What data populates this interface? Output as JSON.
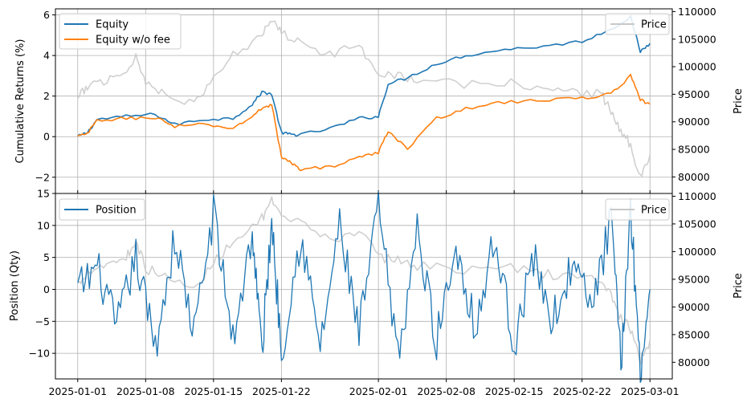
{
  "colors": {
    "equity": "#1f77b4",
    "equity_nofee": "#ff7f0e",
    "price": "#c8c8c8",
    "grid": "#b0b0b0"
  },
  "chart_data": [
    {
      "type": "line",
      "title": "",
      "xlabel": "",
      "ylabel": "Cumulative Returns (%)",
      "ylabel_right": "Price",
      "xlim": [
        "2025-01-01",
        "2025-03-01"
      ],
      "ylim": [
        -2.8,
        6.3
      ],
      "ylim_right": [
        77000,
        110500
      ],
      "grid": true,
      "legend_left": "top-left",
      "legend_right": "top-right",
      "yticks": [
        -2,
        0,
        2,
        4,
        6
      ],
      "yticks_right": [
        80000,
        85000,
        90000,
        95000,
        100000,
        105000,
        110000
      ],
      "series": [
        {
          "name": "Equity",
          "axis": "left",
          "x": [
            "2025-01-01",
            "2025-01-02",
            "2025-01-03",
            "2025-01-06",
            "2025-01-09",
            "2025-01-11",
            "2025-01-14",
            "2025-01-17",
            "2025-01-19",
            "2025-01-20",
            "2025-01-21",
            "2025-01-22",
            "2025-01-23",
            "2025-01-24",
            "2025-01-27",
            "2025-01-30",
            "2025-02-01",
            "2025-02-02",
            "2025-02-04",
            "2025-02-07",
            "2025-02-10",
            "2025-02-14",
            "2025-02-18",
            "2025-02-22",
            "2025-02-25",
            "2025-02-27",
            "2025-02-28",
            "2025-03-01"
          ],
          "y": [
            0.0,
            0.2,
            0.85,
            1.0,
            1.1,
            0.6,
            0.85,
            0.9,
            1.6,
            2.2,
            2.1,
            0.2,
            0.1,
            0.1,
            0.4,
            0.9,
            1.0,
            2.6,
            2.9,
            3.6,
            4.0,
            4.3,
            4.45,
            4.7,
            5.3,
            5.9,
            4.2,
            4.6
          ]
        },
        {
          "name": "Equity w/o fee",
          "axis": "left",
          "x": [
            "2025-01-01",
            "2025-01-02",
            "2025-01-03",
            "2025-01-06",
            "2025-01-09",
            "2025-01-11",
            "2025-01-14",
            "2025-01-17",
            "2025-01-19",
            "2025-01-20",
            "2025-01-21",
            "2025-01-22",
            "2025-01-23",
            "2025-01-24",
            "2025-01-27",
            "2025-01-30",
            "2025-02-01",
            "2025-02-02",
            "2025-02-04",
            "2025-02-07",
            "2025-02-10",
            "2025-02-14",
            "2025-02-18",
            "2025-02-22",
            "2025-02-25",
            "2025-02-27",
            "2025-02-28",
            "2025-03-01"
          ],
          "y": [
            0.0,
            0.15,
            0.8,
            0.9,
            0.95,
            0.5,
            0.6,
            0.4,
            1.0,
            1.4,
            1.6,
            -1.0,
            -1.3,
            -1.6,
            -1.5,
            -1.0,
            -0.8,
            0.3,
            -0.6,
            0.9,
            1.4,
            1.7,
            1.8,
            1.9,
            2.1,
            3.0,
            1.8,
            1.6
          ]
        },
        {
          "name": "Price",
          "axis": "right",
          "x": [
            "2025-01-01",
            "2025-01-02",
            "2025-01-04",
            "2025-01-06",
            "2025-01-07",
            "2025-01-08",
            "2025-01-10",
            "2025-01-13",
            "2025-01-15",
            "2025-01-17",
            "2025-01-20",
            "2025-01-21",
            "2025-01-22",
            "2025-01-24",
            "2025-01-27",
            "2025-01-30",
            "2025-02-01",
            "2025-02-03",
            "2025-02-05",
            "2025-02-09",
            "2025-02-14",
            "2025-02-18",
            "2025-02-21",
            "2025-02-24",
            "2025-02-25",
            "2025-02-26",
            "2025-02-27",
            "2025-02-28",
            "2025-03-01"
          ],
          "y": [
            94000,
            96500,
            97800,
            99000,
            102000,
            97000,
            95500,
            93000,
            98000,
            102000,
            106000,
            109000,
            106000,
            105000,
            102000,
            104000,
            99000,
            98500,
            97500,
            96800,
            97200,
            96000,
            95500,
            95000,
            92000,
            88000,
            86000,
            80000,
            84000
          ]
        }
      ]
    },
    {
      "type": "line",
      "title": "",
      "xlabel": "",
      "ylabel": "Position (Qty)",
      "ylabel_right": "Price",
      "xlim": [
        "2025-01-01",
        "2025-03-01"
      ],
      "ylim": [
        -14,
        15
      ],
      "ylim_right": [
        77000,
        110500
      ],
      "grid": true,
      "legend_left": "top-left",
      "legend_right": "top-right",
      "yticks": [
        -10,
        -5,
        0,
        5,
        10,
        15
      ],
      "yticks_right": [
        80000,
        85000,
        90000,
        95000,
        100000,
        105000,
        110000
      ],
      "xticks": [
        "2025-01-01",
        "2025-01-08",
        "2025-01-15",
        "2025-01-22",
        "2025-02-01",
        "2025-02-08",
        "2025-02-15",
        "2025-02-22",
        "2025-03-01"
      ],
      "series": [
        {
          "name": "Position",
          "axis": "left",
          "x": [
            "2025-01-01",
            "2025-01-03",
            "2025-01-05",
            "2025-01-07",
            "2025-01-09",
            "2025-01-11",
            "2025-01-13",
            "2025-01-15",
            "2025-01-17",
            "2025-01-19",
            "2025-01-20",
            "2025-01-21",
            "2025-01-22",
            "2025-01-24",
            "2025-01-26",
            "2025-01-28",
            "2025-01-30",
            "2025-02-01",
            "2025-02-03",
            "2025-02-05",
            "2025-02-07",
            "2025-02-09",
            "2025-02-11",
            "2025-02-13",
            "2025-02-15",
            "2025-02-17",
            "2025-02-19",
            "2025-02-21",
            "2025-02-23",
            "2025-02-25",
            "2025-02-26",
            "2025-02-27",
            "2025-02-28",
            "2025-03-01"
          ],
          "y": [
            0,
            3.5,
            -6.0,
            5.0,
            -9.0,
            8.0,
            -7.0,
            12.0,
            -8.0,
            9.0,
            -10.0,
            11.0,
            -9.5,
            8.5,
            -9.0,
            10.0,
            -7.0,
            13.0,
            -11.0,
            9.0,
            -8.0,
            7.0,
            -6.0,
            8.0,
            -8.5,
            5.0,
            -5.0,
            4.0,
            -3.0,
            11.0,
            -12.0,
            13.0,
            -12.5,
            0
          ]
        },
        {
          "name": "Price",
          "axis": "right",
          "x": [
            "2025-01-01",
            "2025-01-02",
            "2025-01-04",
            "2025-01-06",
            "2025-01-07",
            "2025-01-08",
            "2025-01-10",
            "2025-01-13",
            "2025-01-15",
            "2025-01-17",
            "2025-01-20",
            "2025-01-21",
            "2025-01-22",
            "2025-01-24",
            "2025-01-27",
            "2025-01-30",
            "2025-02-01",
            "2025-02-03",
            "2025-02-05",
            "2025-02-09",
            "2025-02-14",
            "2025-02-18",
            "2025-02-21",
            "2025-02-24",
            "2025-02-25",
            "2025-02-26",
            "2025-02-27",
            "2025-02-28",
            "2025-03-01"
          ],
          "y": [
            94000,
            96500,
            97800,
            99000,
            102000,
            97000,
            95500,
            93000,
            98000,
            102000,
            106000,
            109000,
            106000,
            105000,
            102000,
            104000,
            99000,
            98500,
            97500,
            96800,
            97200,
            96000,
            95500,
            95000,
            92000,
            88000,
            86000,
            80000,
            84000
          ]
        }
      ]
    }
  ]
}
